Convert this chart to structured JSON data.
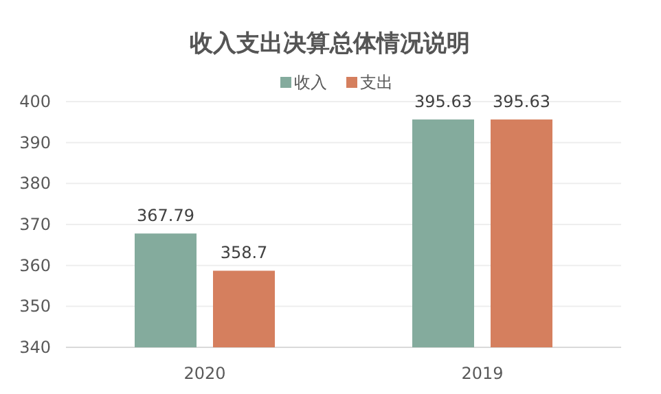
{
  "chart_data": {
    "type": "bar",
    "title": "收入支出决算总体情况说明",
    "categories": [
      "2020",
      "2019"
    ],
    "series": [
      {
        "name": "收入",
        "color": "#84ab9d",
        "values": [
          367.79,
          395.63
        ]
      },
      {
        "name": "支出",
        "color": "#d57f5e",
        "values": [
          358.7,
          395.63
        ]
      }
    ],
    "ylim": [
      340,
      400
    ],
    "yticks": [
      340,
      350,
      360,
      370,
      380,
      390,
      400
    ],
    "grid": "y",
    "legend": "top",
    "data_labels": true
  }
}
